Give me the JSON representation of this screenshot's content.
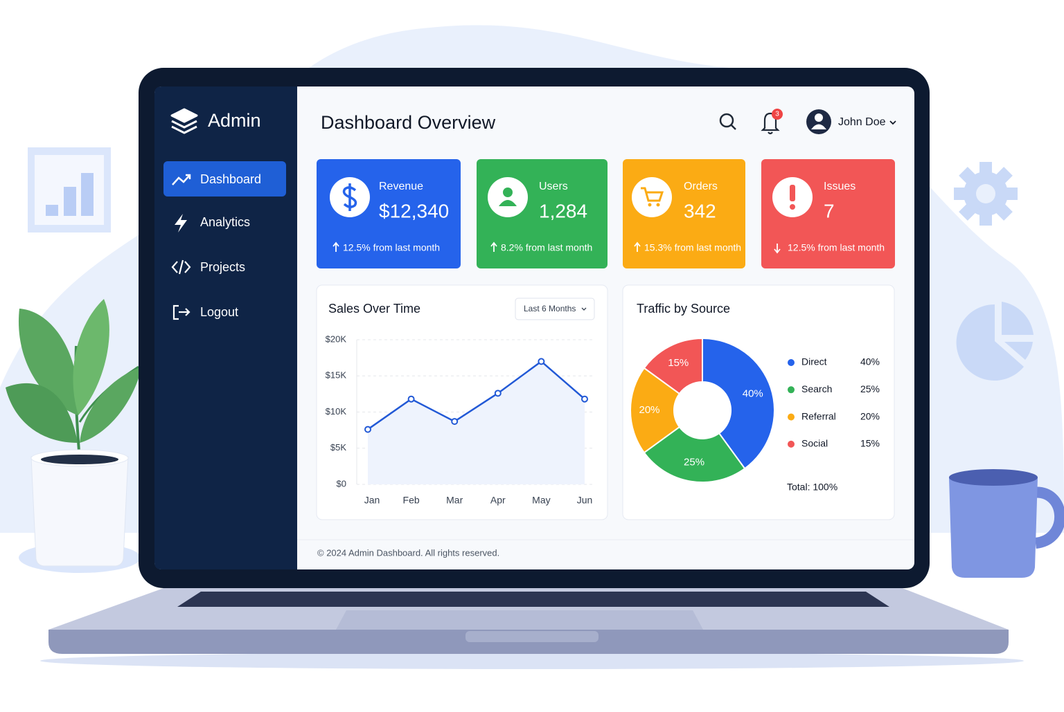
{
  "sidebar": {
    "brand": "Admin",
    "nav": [
      "Dashboard",
      "Analytics",
      "Projects",
      "Logout"
    ]
  },
  "header": {
    "title": "Dashboard Overview",
    "notifications": "3",
    "user": "John Doe"
  },
  "cards": [
    {
      "label": "Revenue",
      "value": "$12,340",
      "change": "12.5% from last month",
      "color": "#2563eb"
    },
    {
      "label": "Users",
      "value": "1,284",
      "change": "8.2% from last month",
      "color": "#33b257"
    },
    {
      "label": "Orders",
      "value": "342",
      "change": "15.3% from last month",
      "color": "#fbab14"
    },
    {
      "label": "Issues",
      "value": "7",
      "change": "12.5% from last month",
      "color": "#f25656"
    }
  ],
  "chart_data": [
    {
      "type": "line",
      "title": "Sales Over Time",
      "filter": "Last 6 Months",
      "categories": [
        "Jan",
        "Feb",
        "Mar",
        "Apr",
        "May",
        "Jun"
      ],
      "values": [
        7600,
        11800,
        8700,
        12600,
        17000,
        11800
      ],
      "color": "#2259d6",
      "ylim": [
        0,
        20000
      ],
      "yticks": [
        {
          "value": 0,
          "label": "$0"
        },
        {
          "value": 5000,
          "label": "$5K"
        },
        {
          "value": 10000,
          "label": "$10K"
        },
        {
          "value": 15000,
          "label": "$15K"
        },
        {
          "value": 20000,
          "label": "$20K"
        }
      ],
      "grid": true
    },
    {
      "type": "pie",
      "title": "Traffic by Source",
      "categories": [
        "Direct",
        "Search",
        "Referral",
        "Social"
      ],
      "values": [
        40,
        25,
        20,
        15
      ],
      "value_labels": [
        "40%",
        "25%",
        "20%",
        "15%"
      ],
      "colors": [
        "#2563eb",
        "#33b257",
        "#fbab14",
        "#f25656"
      ],
      "total": "Total:  100%"
    }
  ],
  "footer": "© 2024 Admin Dashboard. All rights reserved."
}
